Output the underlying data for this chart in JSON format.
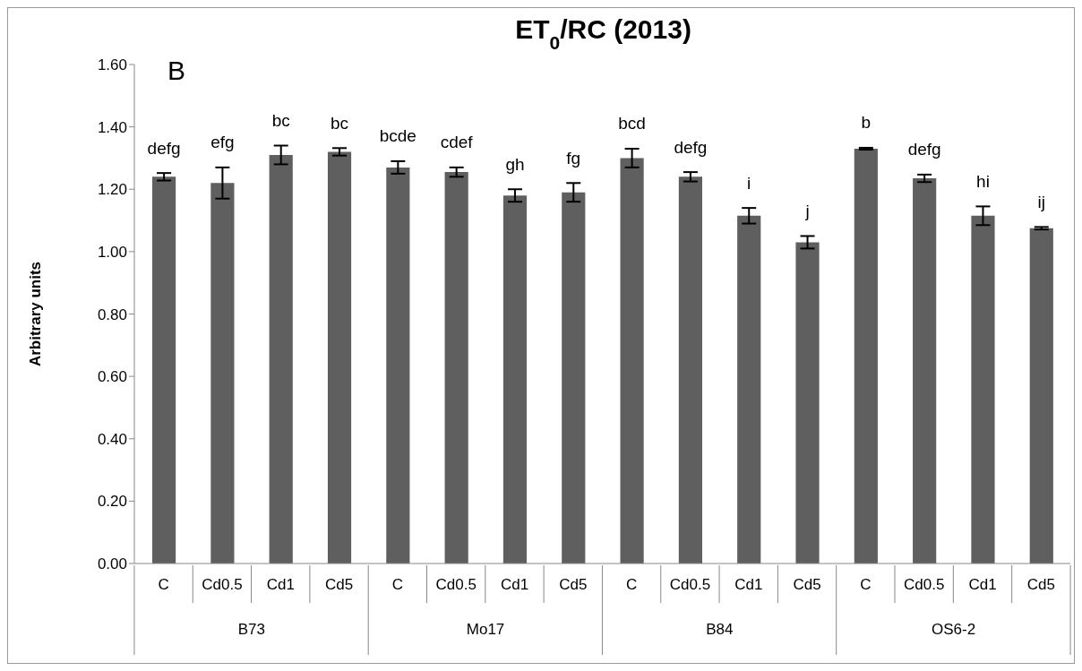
{
  "chart_data": {
    "type": "bar",
    "title": "ET$_{0}$/RC (2013)",
    "ylabel": "Arbitrary units",
    "categories": [
      "C",
      "Cd0.5",
      "Cd1",
      "Cd5",
      "C",
      "Cd0.5",
      "Cd1",
      "Cd5",
      "C",
      "Cd0.5",
      "Cd1",
      "Cd5",
      "C",
      "Cd0.5",
      "Cd1",
      "Cd5"
    ],
    "values": [
      1.24,
      1.22,
      1.31,
      1.32,
      1.27,
      1.255,
      1.18,
      1.19,
      1.3,
      1.24,
      1.115,
      1.03,
      1.33,
      1.235,
      1.115,
      1.075
    ],
    "errors": [
      0.012,
      0.05,
      0.03,
      0.012,
      0.02,
      0.015,
      0.02,
      0.03,
      0.03,
      0.015,
      0.025,
      0.02,
      0.003,
      0.012,
      0.03,
      0.004
    ],
    "color": "#5f5f5f",
    "ylim": [
      0,
      1.6
    ],
    "yticks": [
      {
        "value": 0,
        "label": "0.00"
      },
      {
        "value": 0.2,
        "label": "0.20"
      },
      {
        "value": 0.4,
        "label": "0.40"
      },
      {
        "value": 0.6,
        "label": "0.60"
      },
      {
        "value": 0.8,
        "label": "0.80"
      },
      {
        "value": 1,
        "label": "1.00"
      },
      {
        "value": 1.2,
        "label": "1.20"
      },
      {
        "value": 1.4,
        "label": "1.40"
      },
      {
        "value": 1.6,
        "label": "1.60"
      }
    ],
    "annotations": [
      "defg",
      "efg",
      "bc",
      "bc",
      "bcde",
      "cdef",
      "gh",
      "fg",
      "bcd",
      "defg",
      "i",
      "j",
      "b",
      "defg",
      "hi",
      "ij",
      "B",
      "B73",
      "Mo17",
      "B84",
      "OS6-2"
    ]
  }
}
